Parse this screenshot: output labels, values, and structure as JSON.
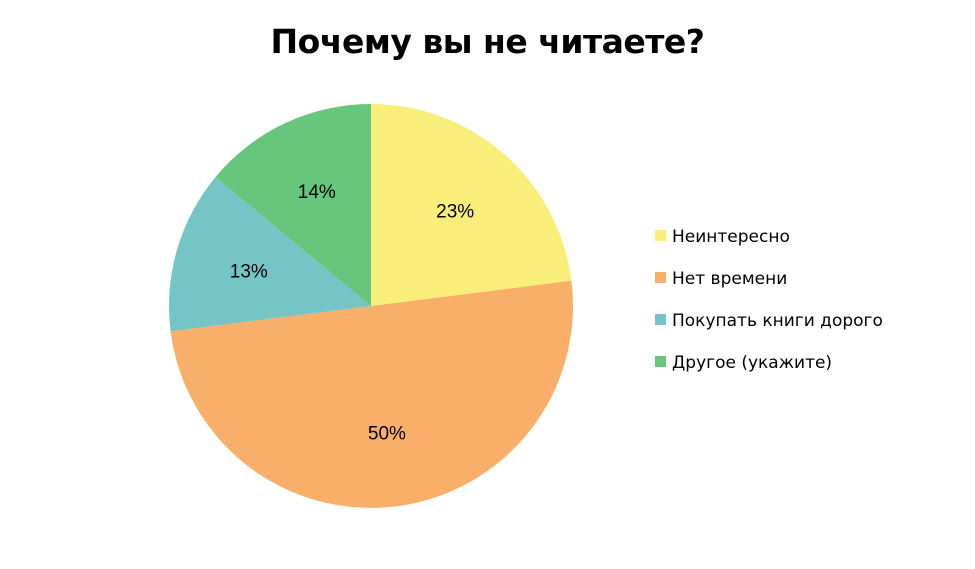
{
  "chart_data": {
    "type": "pie",
    "title": "Почему вы не читаете?",
    "legend_position": "right",
    "slices": [
      {
        "name": "Неинтересно",
        "value": 23,
        "label": "23%",
        "color": "#FAEE7A"
      },
      {
        "name": "Нет времени",
        "value": 50,
        "label": "50%",
        "color": "#F9AF6A"
      },
      {
        "name": "Покупать книги дорого",
        "value": 13,
        "label": "13%",
        "color": "#76C5C6"
      },
      {
        "name": "Другое (укажите)",
        "value": 14,
        "label": "14%",
        "color": "#66C67C"
      }
    ]
  }
}
